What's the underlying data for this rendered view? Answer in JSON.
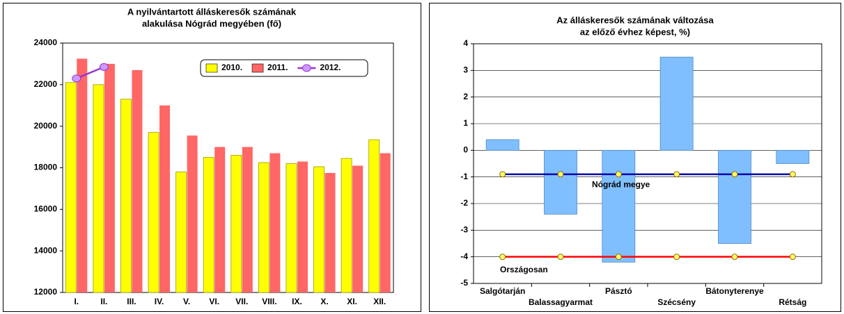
{
  "chart_data": [
    {
      "type": "bar",
      "title": [
        "A nyilvántartott álláskeresők számának",
        "alakulása Nógrád megyében (fő)"
      ],
      "categories": [
        "I.",
        "II.",
        "III.",
        "IV.",
        "V.",
        "VI.",
        "VII.",
        "VIII.",
        "IX.",
        "X.",
        "XI.",
        "XII."
      ],
      "series": [
        {
          "name": "2010.",
          "type": "bar",
          "color": "#ffff00",
          "values": [
            22100,
            22000,
            21300,
            19700,
            17800,
            18500,
            18600,
            18250,
            18200,
            18050,
            18450,
            19350
          ]
        },
        {
          "name": "2011.",
          "type": "bar",
          "color": "#ff6666",
          "values": [
            23250,
            23000,
            22700,
            21000,
            19550,
            19000,
            19000,
            18700,
            18300,
            17750,
            18100,
            18700
          ]
        },
        {
          "name": "2012.",
          "type": "line",
          "color": "#9933cc",
          "marker_color": "#cc99ff",
          "values": [
            22300,
            22850,
            null,
            null,
            null,
            null,
            null,
            null,
            null,
            null,
            null,
            null
          ]
        }
      ],
      "ylim": [
        12000,
        24000
      ],
      "yticks": [
        12000,
        14000,
        16000,
        18000,
        20000,
        22000,
        24000
      ],
      "grid": false,
      "legend": "top-right"
    },
    {
      "type": "bar",
      "title": [
        "Az álláskeresők számának változása",
        "az előző évhez képest, %)"
      ],
      "categories": [
        "Salgótarján",
        "Balassagyarmat",
        "Pásztó",
        "Szécsény",
        "Bátonyterenye",
        "Rétság"
      ],
      "series": [
        {
          "type": "bar",
          "color": "#80bfff",
          "values": [
            0.4,
            -2.4,
            -4.2,
            3.5,
            -3.5,
            -0.5
          ]
        },
        {
          "name": "Nógrád megye",
          "type": "line",
          "color": "#0000aa",
          "marker_color": "#ffff66",
          "values": [
            -0.9,
            -0.9,
            -0.9,
            -0.9,
            -0.9,
            -0.9
          ]
        },
        {
          "name": "Országosan",
          "type": "line",
          "color": "#ff0000",
          "marker_color": "#ffff66",
          "values": [
            -4,
            -4,
            -4,
            -4,
            -4,
            -4
          ]
        }
      ],
      "ylim": [
        -5,
        4
      ],
      "yticks": [
        -5,
        -4,
        -3,
        -2,
        -1,
        0,
        1,
        2,
        3,
        4
      ],
      "grid": true,
      "legend": "inline"
    }
  ]
}
